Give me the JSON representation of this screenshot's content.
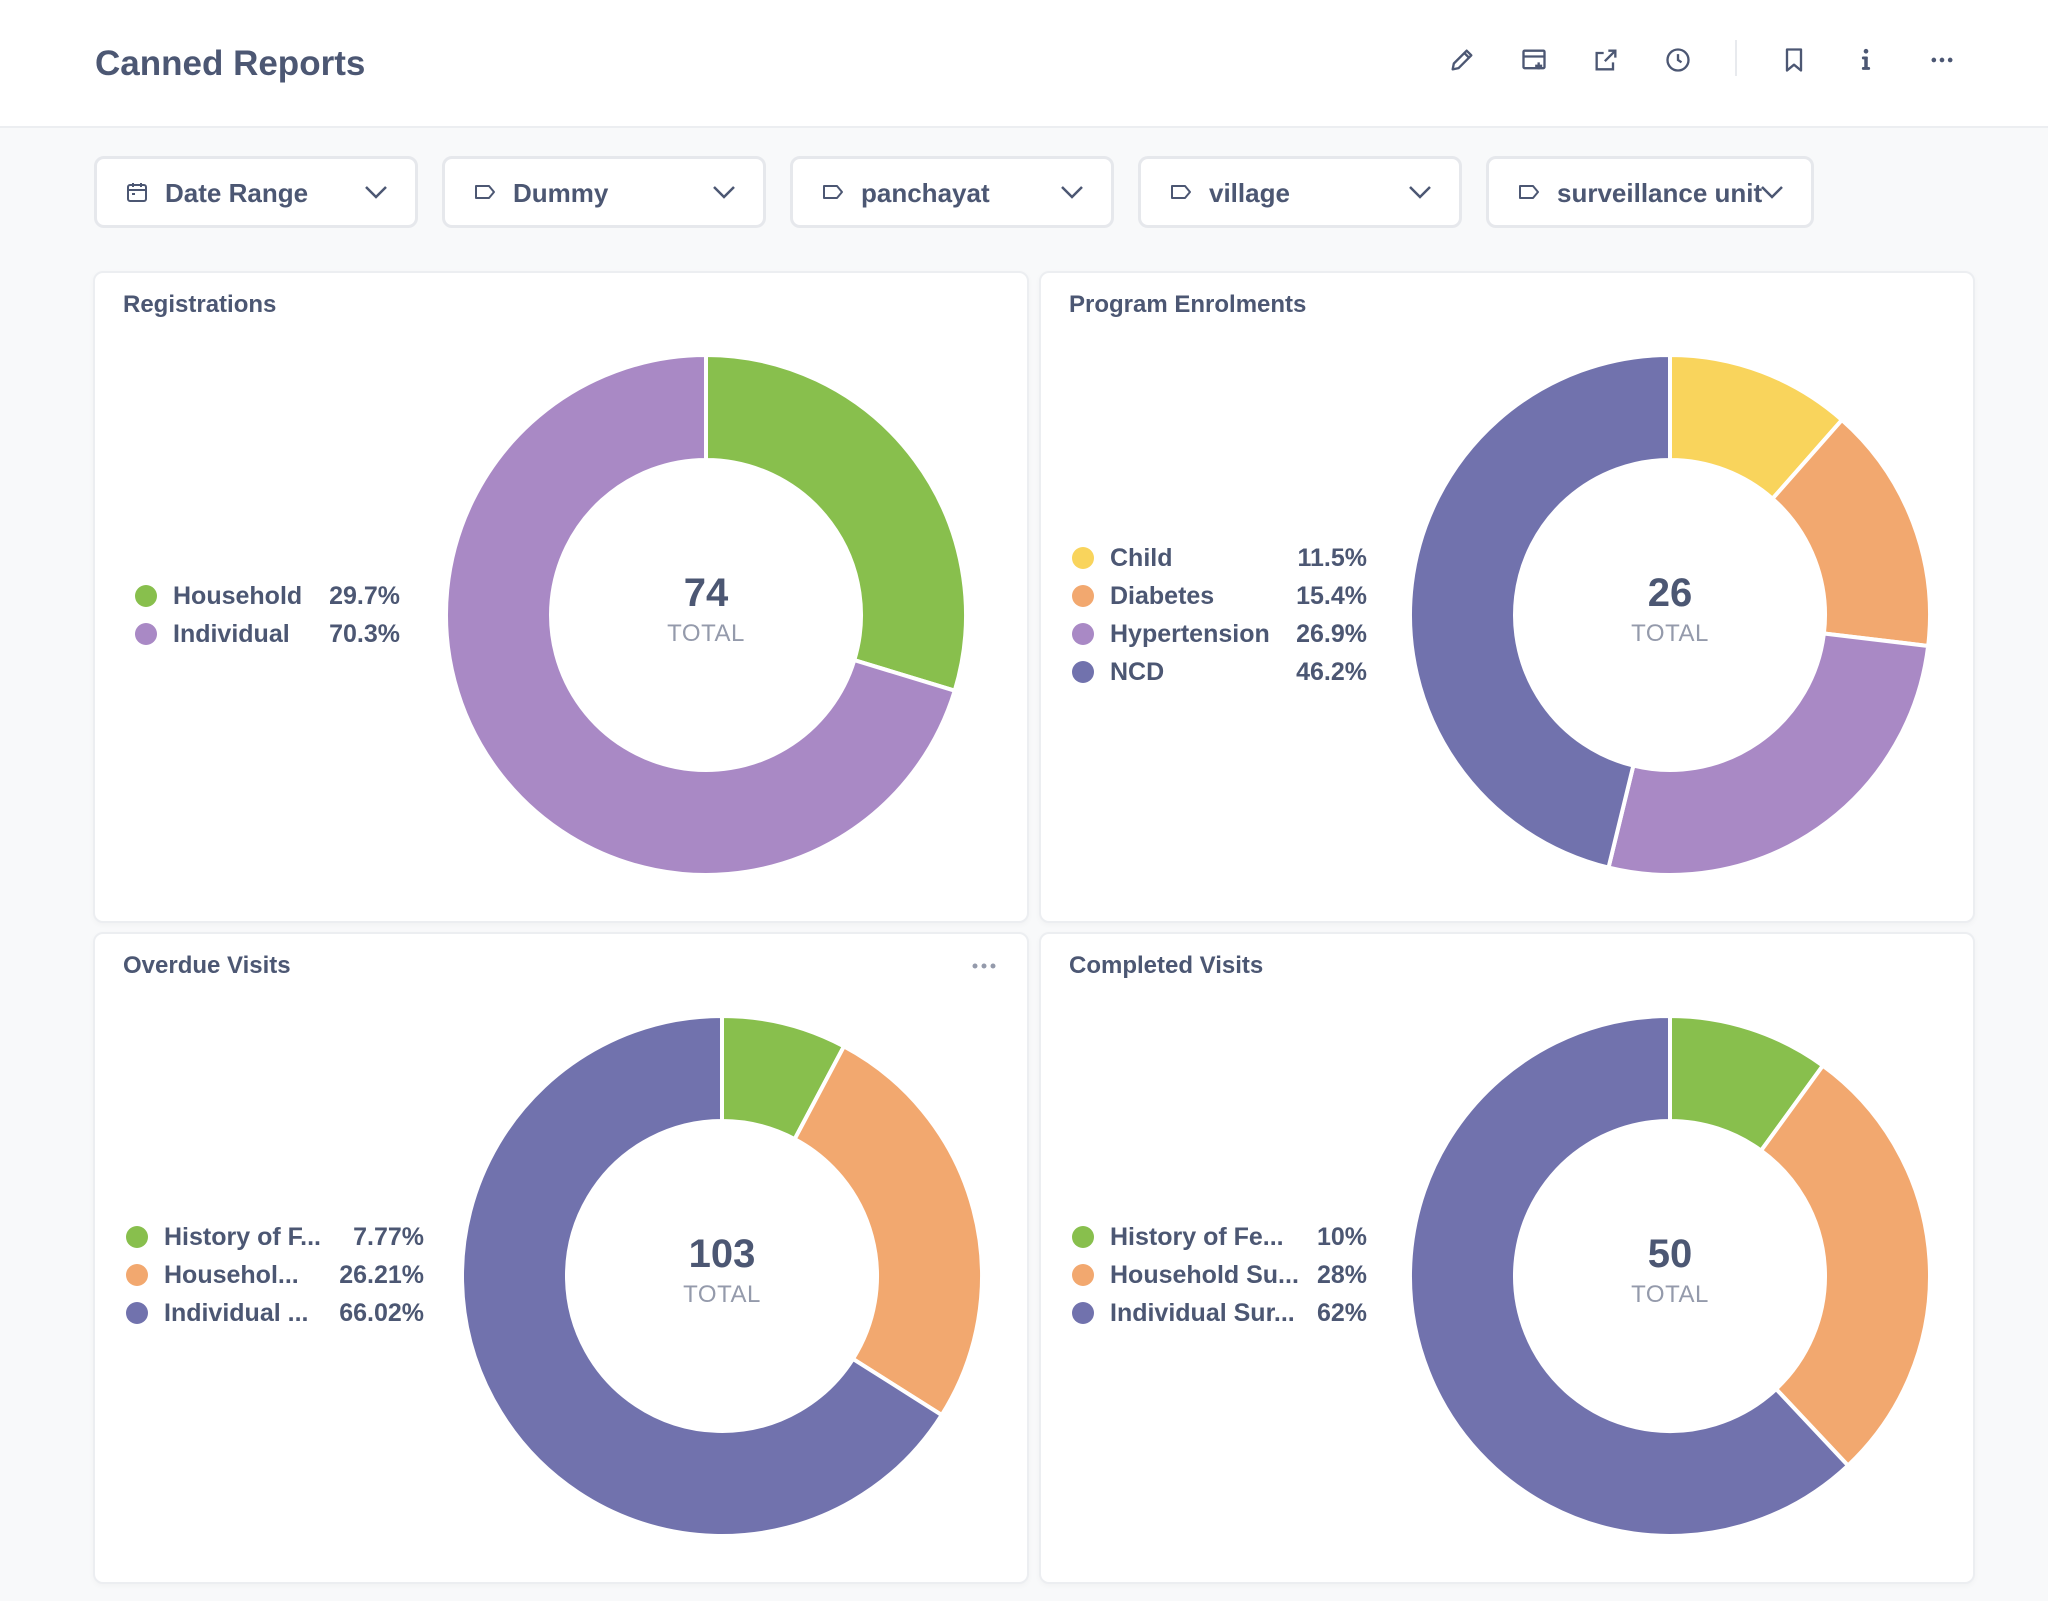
{
  "header": {
    "title": "Canned Reports"
  },
  "header_icons": [
    "pencil-icon",
    "add-to-dashboard-icon",
    "share-icon",
    "history-icon",
    "bookmark-icon",
    "info-icon",
    "more-icon"
  ],
  "filters": [
    {
      "label": "Date Range",
      "icon": "calendar-icon"
    },
    {
      "label": "Dummy",
      "icon": "tag-icon"
    },
    {
      "label": "panchayat",
      "icon": "tag-icon"
    },
    {
      "label": "village",
      "icon": "tag-icon"
    },
    {
      "label": "surveillance unit",
      "icon": "tag-icon"
    }
  ],
  "cards": [
    {
      "title": "Registrations",
      "total": "74",
      "total_label": "TOTAL"
    },
    {
      "title": "Program Enrolments",
      "total": "26",
      "total_label": "TOTAL"
    },
    {
      "title": "Overdue Visits",
      "total": "103",
      "total_label": "TOTAL"
    },
    {
      "title": "Completed Visits",
      "total": "50",
      "total_label": "TOTAL"
    }
  ],
  "colors": {
    "green": "#88bf4d",
    "purple_light": "#a989c5",
    "yellow": "#f9d45c",
    "orange": "#f2a86f",
    "indigo": "#7172ad"
  },
  "chart_data": [
    {
      "type": "pie",
      "title": "Registrations",
      "total": 74,
      "categories": [
        "Household",
        "Individual"
      ],
      "labels": [
        "Household",
        "Individual"
      ],
      "values": [
        29.7,
        70.3
      ],
      "value_labels": [
        "29.7%",
        "70.3%"
      ],
      "colors": [
        "#88bf4d",
        "#a989c5"
      ]
    },
    {
      "type": "pie",
      "title": "Program Enrolments",
      "total": 26,
      "categories": [
        "Child",
        "Diabetes",
        "Hypertension",
        "NCD"
      ],
      "labels": [
        "Child",
        "Diabetes",
        "Hypertension",
        "NCD"
      ],
      "values": [
        11.5,
        15.4,
        26.9,
        46.2
      ],
      "value_labels": [
        "11.5%",
        "15.4%",
        "26.9%",
        "46.2%"
      ],
      "colors": [
        "#f9d45c",
        "#f2a86f",
        "#a989c5",
        "#7172ad"
      ]
    },
    {
      "type": "pie",
      "title": "Overdue Visits",
      "total": 103,
      "categories": [
        "History of F...",
        "Househol...",
        "Individual ..."
      ],
      "labels": [
        "History of F...",
        "Househol...",
        "Individual ..."
      ],
      "values": [
        7.77,
        26.21,
        66.02
      ],
      "value_labels": [
        "7.77%",
        "26.21%",
        "66.02%"
      ],
      "colors": [
        "#88bf4d",
        "#f2a86f",
        "#7172ad"
      ]
    },
    {
      "type": "pie",
      "title": "Completed Visits",
      "total": 50,
      "categories": [
        "History of Fe...",
        "Household Su...",
        "Individual Sur..."
      ],
      "labels": [
        "History of Fe...",
        "Household Su...",
        "Individual Sur..."
      ],
      "values": [
        10,
        28,
        62
      ],
      "value_labels": [
        "10%",
        "28%",
        "62%"
      ],
      "colors": [
        "#88bf4d",
        "#f2a86f",
        "#7172ad"
      ]
    }
  ]
}
